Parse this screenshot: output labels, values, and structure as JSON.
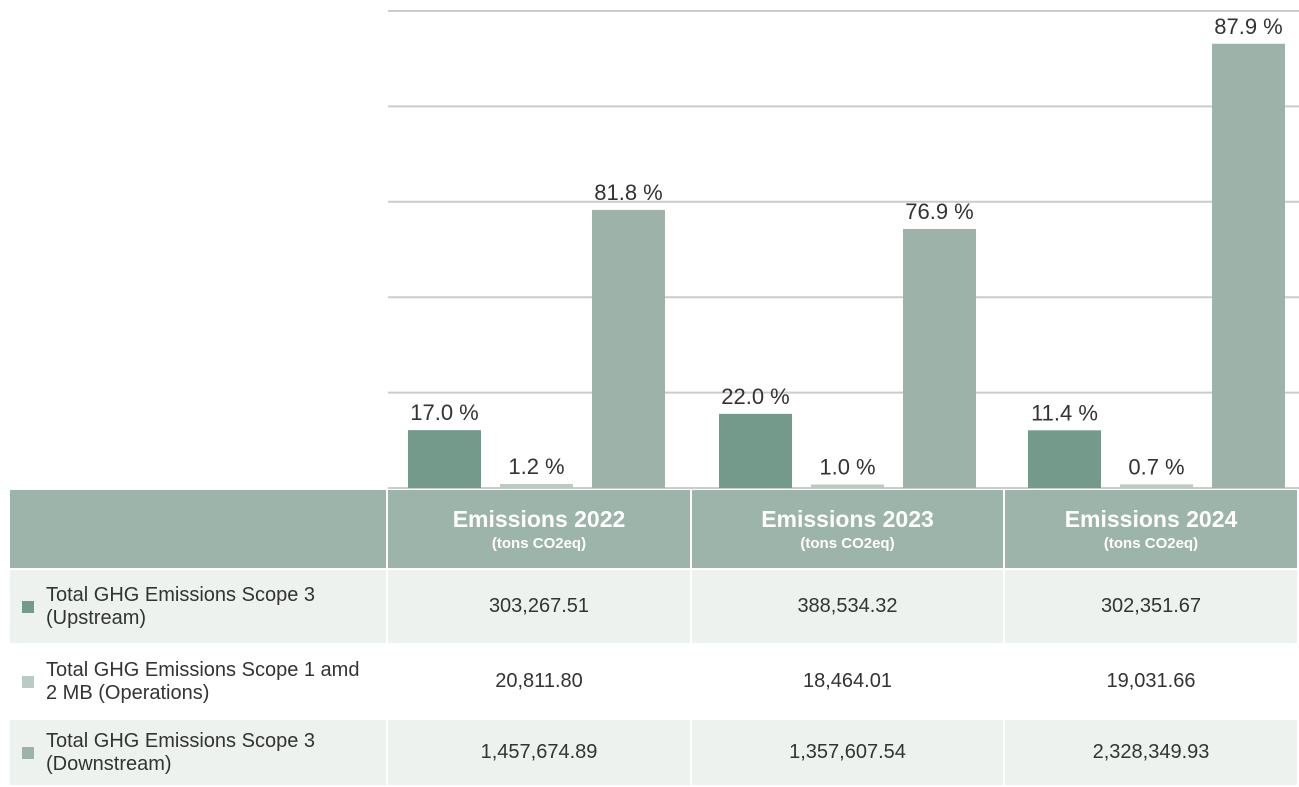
{
  "chart_data": {
    "type": "bar",
    "categories": [
      "Emissions 2022",
      "Emissions 2023",
      "Emissions 2024"
    ],
    "unit": "(tons CO2eq)",
    "series": [
      {
        "name": "Total GHG Emissions Scope 3 (Upstream)",
        "color": "#739a8a",
        "values": [
          303267.51,
          388534.32,
          302351.67
        ],
        "value_labels": [
          "303,267.51",
          "388,534.32",
          "302,351.67"
        ],
        "share_labels": [
          "17.0 %",
          "22.0 %",
          "11.4 %"
        ]
      },
      {
        "name": "Total GHG Emissions Scope 1 amd 2 MB (Operations)",
        "color": "#b9cbc2",
        "values": [
          20811.8,
          18464.01,
          19031.66
        ],
        "value_labels": [
          "20,811.80",
          "18,464.01",
          "19,031.66"
        ],
        "share_labels": [
          "1.2 %",
          "1.0 %",
          "0.7 %"
        ]
      },
      {
        "name": "Total GHG Emissions Scope 3 (Downstream)",
        "color": "#9db3a9",
        "values": [
          1457674.89,
          1357607.54,
          2328349.93
        ],
        "value_labels": [
          "1,457,674.89",
          "1,357,607.54",
          "2,328,349.93"
        ],
        "share_labels": [
          "81.8 %",
          "76.9 %",
          "87.9 %"
        ]
      }
    ],
    "ylim": [
      0,
      2500000
    ],
    "yticks": [
      0,
      500000,
      1000000,
      1500000,
      2000000,
      2500000
    ],
    "grid": true
  }
}
